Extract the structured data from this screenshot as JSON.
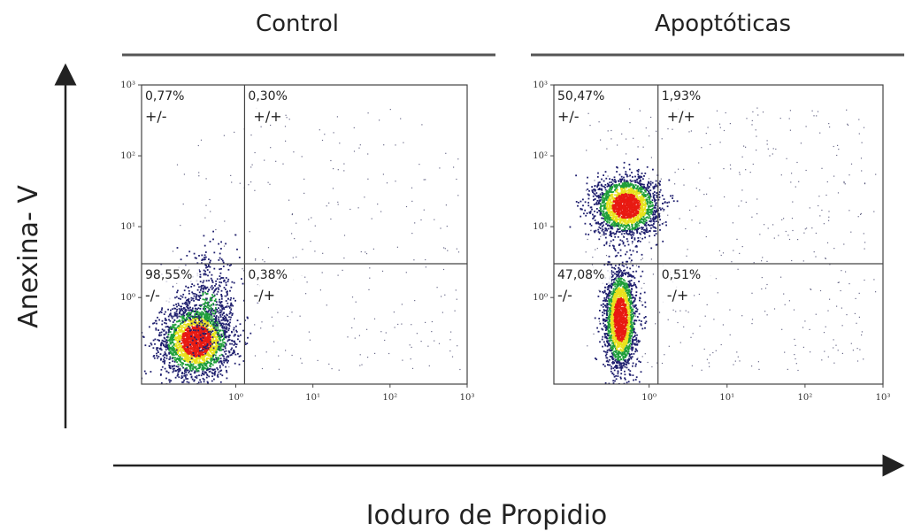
{
  "figure": {
    "x_axis_title": "Ioduro de Propidio",
    "y_axis_title": "Anexina- V"
  },
  "colors": {
    "axis": "#222222",
    "frame": "#444444",
    "density_low": "#1f1f6e",
    "density_mid_low": "#1f9e3a",
    "density_mid": "#e8e21c",
    "density_high": "#e81a12",
    "outlier_points": "#2a2a55"
  },
  "chart_data": [
    {
      "type": "scatter",
      "title": "Control",
      "x_scale": "log",
      "y_scale": "log",
      "xlim": [
        0.06,
        1000
      ],
      "ylim": [
        0.06,
        1000
      ],
      "x_tick_labels": [
        "10⁰",
        "10¹",
        "10²",
        "10³"
      ],
      "y_tick_labels": [
        "10⁰",
        "10¹",
        "10²",
        "10³"
      ],
      "gate": {
        "x": 1.3,
        "y": 3
      },
      "quadrants": [
        {
          "position": "top-left",
          "percent": "0,77%",
          "label": "+/-"
        },
        {
          "position": "top-right",
          "percent": "0,30%",
          "label": "+/+"
        },
        {
          "position": "bottom-left",
          "percent": "98,55%",
          "label": "-/-"
        },
        {
          "position": "bottom-right",
          "percent": "0,38%",
          "label": "-/+"
        }
      ],
      "populations": [
        {
          "cx": 0.3,
          "cy": 0.25,
          "sx": 0.22,
          "sy": 0.25,
          "count": 2600,
          "intensity": "high"
        },
        {
          "cx": 0.42,
          "cy": 0.8,
          "sx": 0.2,
          "sy": 0.35,
          "count": 500,
          "intensity": "low"
        }
      ]
    },
    {
      "type": "scatter",
      "title": "Apoptóticas",
      "x_scale": "log",
      "y_scale": "log",
      "xlim": [
        0.06,
        1000
      ],
      "ylim": [
        0.06,
        1000
      ],
      "x_tick_labels": [
        "10⁰",
        "10¹",
        "10²",
        "10³"
      ],
      "y_tick_labels": [
        "10⁰",
        "10¹",
        "10²",
        "10³"
      ],
      "gate": {
        "x": 1.3,
        "y": 3
      },
      "quadrants": [
        {
          "position": "top-left",
          "percent": "50,47%",
          "label": "+/-"
        },
        {
          "position": "top-right",
          "percent": "1,93%",
          "label": "+/+"
        },
        {
          "position": "bottom-left",
          "percent": "47,08%",
          "label": "-/-"
        },
        {
          "position": "bottom-right",
          "percent": "0,51%",
          "label": "-/+"
        }
      ],
      "populations": [
        {
          "cx": 0.5,
          "cy": 20,
          "sx": 0.2,
          "sy": 0.2,
          "count": 2300,
          "intensity": "high"
        },
        {
          "cx": 0.42,
          "cy": 0.5,
          "sx": 0.1,
          "sy": 0.35,
          "count": 2300,
          "intensity": "high"
        }
      ]
    }
  ]
}
